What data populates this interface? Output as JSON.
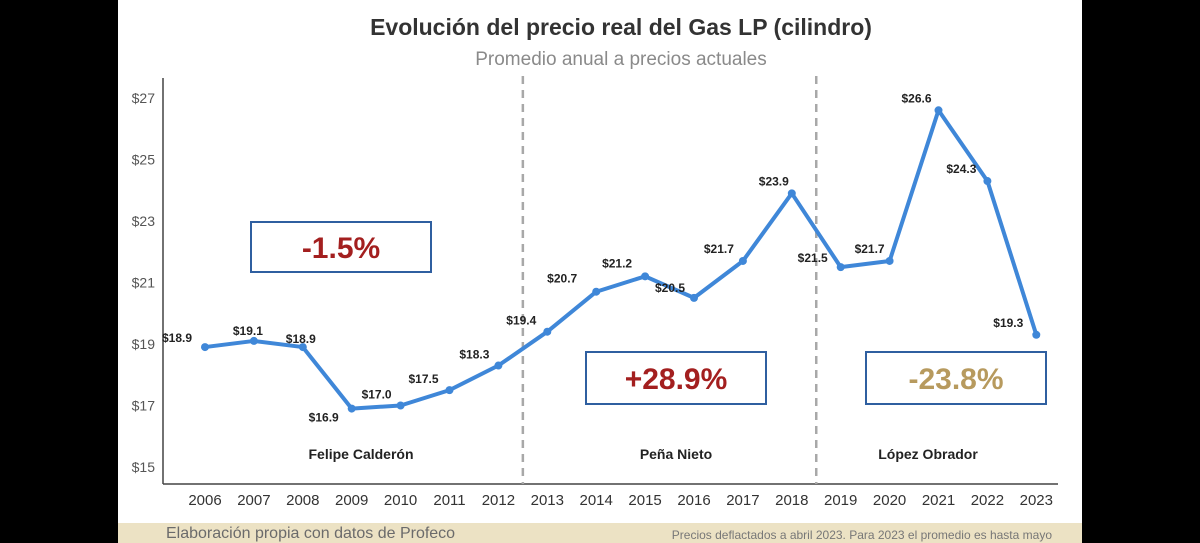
{
  "chart_data": {
    "type": "line",
    "title": "Evolución del precio real del Gas LP (cilindro)",
    "subtitle": "Promedio anual a precios actuales",
    "x": [
      "2006",
      "2007",
      "2008",
      "2009",
      "2010",
      "2011",
      "2012",
      "2013",
      "2014",
      "2015",
      "2016",
      "2017",
      "2018",
      "2019",
      "2020",
      "2021",
      "2022",
      "2023"
    ],
    "series": [
      {
        "values": [
          18.9,
          19.1,
          18.9,
          16.9,
          17.0,
          17.5,
          18.3,
          19.4,
          20.7,
          21.2,
          20.5,
          21.7,
          23.9,
          21.5,
          21.7,
          26.6,
          24.3,
          19.3
        ],
        "labels": [
          "$18.9",
          "$19.1",
          "$18.9",
          "$16.9",
          "$17.0",
          "$17.5",
          "$18.3",
          "$19.4",
          "$20.7",
          "$21.2",
          "$20.5",
          "$21.7",
          "$23.9",
          "$21.5",
          "$21.7",
          "$26.6",
          "$24.3",
          "$19.3"
        ]
      }
    ],
    "ylim": [
      15,
      27.5
    ],
    "yticks": [
      15,
      17,
      19,
      21,
      23,
      25,
      27
    ],
    "ytick_labels": [
      "$15",
      "$17",
      "$19",
      "$21",
      "$23",
      "$25",
      "$27"
    ],
    "line_color": "#3f87d8",
    "period_dividers_after": [
      "2012",
      "2018"
    ],
    "periods": [
      {
        "name": "Felipe Calderón",
        "change": "-1.5%",
        "change_color": "#a31f1f"
      },
      {
        "name": "Peña Nieto",
        "change": "+28.9%",
        "change_color": "#a31f1f"
      },
      {
        "name": "López Obrador",
        "change": "-23.8%",
        "change_color": "#b79a5e"
      }
    ],
    "box_border_color": "#2f5fa0",
    "grid": false
  },
  "footer": {
    "source": "Elaboración propia con datos de Profeco",
    "note": "Precios deflactados a abril 2023. Para 2023 el promedio es hasta mayo"
  }
}
